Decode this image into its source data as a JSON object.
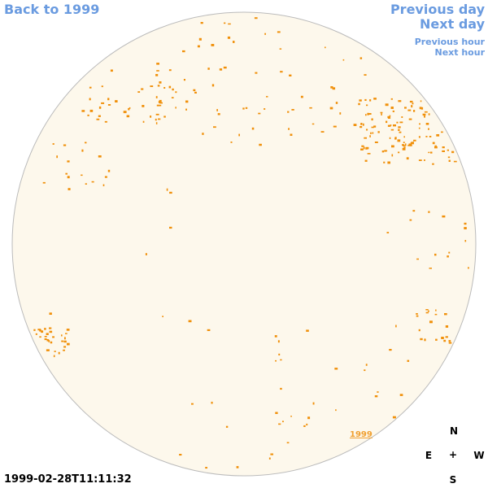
{
  "links": {
    "back": "Back to 1999",
    "previous_day": "Previous day",
    "next_day": "Next day",
    "previous_hour": "Previous hour",
    "next_hour": "Next hour"
  },
  "disk_label": "1999",
  "timestamp": "1999-02-28T11:11:32",
  "compass": {
    "north": "N",
    "east": "E",
    "center": "+",
    "west": "W",
    "south": "S"
  }
}
